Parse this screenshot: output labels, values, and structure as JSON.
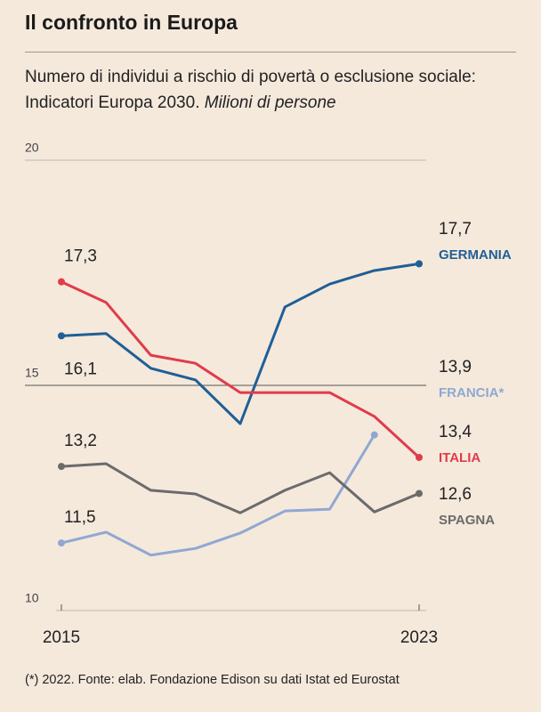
{
  "chart_data": {
    "type": "line",
    "title": "Il confronto in Europa",
    "subtitle": "Numero di individui a rischio di povertà o esclusione sociale: Indicatori Europa 2030.",
    "unit": "Milioni di persone",
    "note": "(*) 2022. Fonte: elab. Fondazione Edison su dati Istat ed Eurostat",
    "x": [
      2015,
      2016,
      2017,
      2018,
      2019,
      2020,
      2021,
      2022,
      2023
    ],
    "xlim": [
      2015,
      2023
    ],
    "xticks": [
      2015,
      2023
    ],
    "ylim": [
      10,
      20
    ],
    "yticks": [
      10,
      15,
      20
    ],
    "grid": true,
    "series": [
      {
        "name": "GERMANIA",
        "color": "#1f5f96",
        "values": [
          16.1,
          16.15,
          15.38,
          15.12,
          14.15,
          16.74,
          17.25,
          17.55,
          17.7
        ],
        "value_labels": [
          "16,1",
          null,
          null,
          null,
          null,
          null,
          null,
          null,
          "17,7"
        ]
      },
      {
        "name": "FRANCIA*",
        "color": "#8fa8d2",
        "values": [
          11.5,
          11.74,
          11.23,
          11.38,
          11.72,
          12.21,
          12.25,
          13.9,
          null
        ],
        "value_labels": [
          "11,5",
          null,
          null,
          null,
          null,
          null,
          null,
          "13,9",
          null
        ]
      },
      {
        "name": "ITALIA",
        "color": "#e03c4a",
        "values": [
          17.3,
          16.84,
          15.67,
          15.49,
          14.84,
          14.84,
          14.84,
          14.31,
          13.4
        ],
        "value_labels": [
          "17,3",
          null,
          null,
          null,
          null,
          null,
          null,
          null,
          "13,4"
        ]
      },
      {
        "name": "SPAGNA",
        "color": "#6b6b6b",
        "values": [
          13.2,
          13.26,
          12.67,
          12.59,
          12.17,
          12.67,
          13.06,
          12.19,
          12.6
        ],
        "value_labels": [
          "13,2",
          null,
          null,
          null,
          null,
          null,
          null,
          null,
          "12,6"
        ]
      }
    ]
  }
}
